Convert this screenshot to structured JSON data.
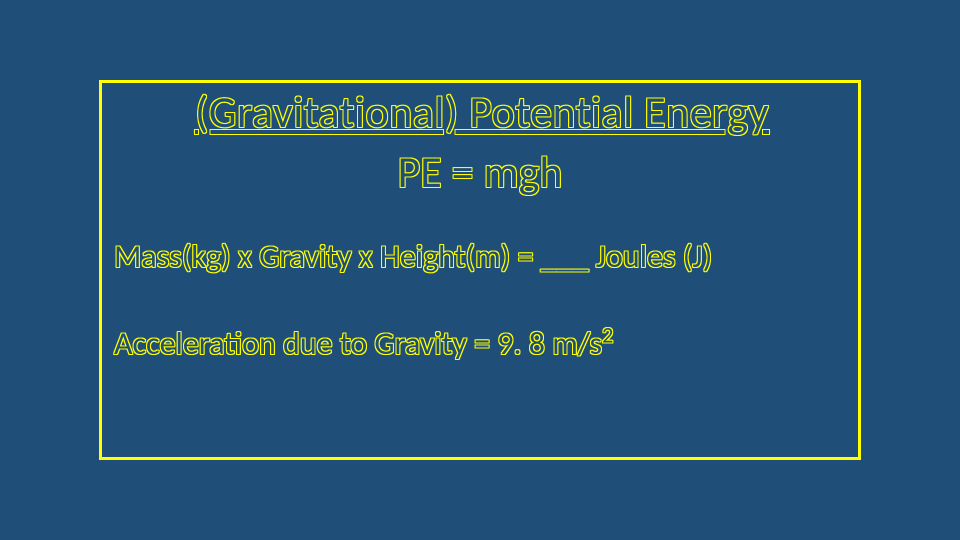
{
  "slide": {
    "background_color": "#1f4e79",
    "border_color": "#ffff00",
    "text_outline_color": "#ffff00",
    "text_fill_color": "#1f4e79",
    "title": "(Gravitational) Potential Energy",
    "formula": "PE = mgh",
    "equation_line": "Mass(kg) x Gravity x Height(m) =  ___ Joules (J)",
    "gravity_prefix": "Acceleration due to Gravity =  9. 8 m/s",
    "gravity_exponent": "2",
    "title_fontsize": 44,
    "body_fontsize": 32
  }
}
